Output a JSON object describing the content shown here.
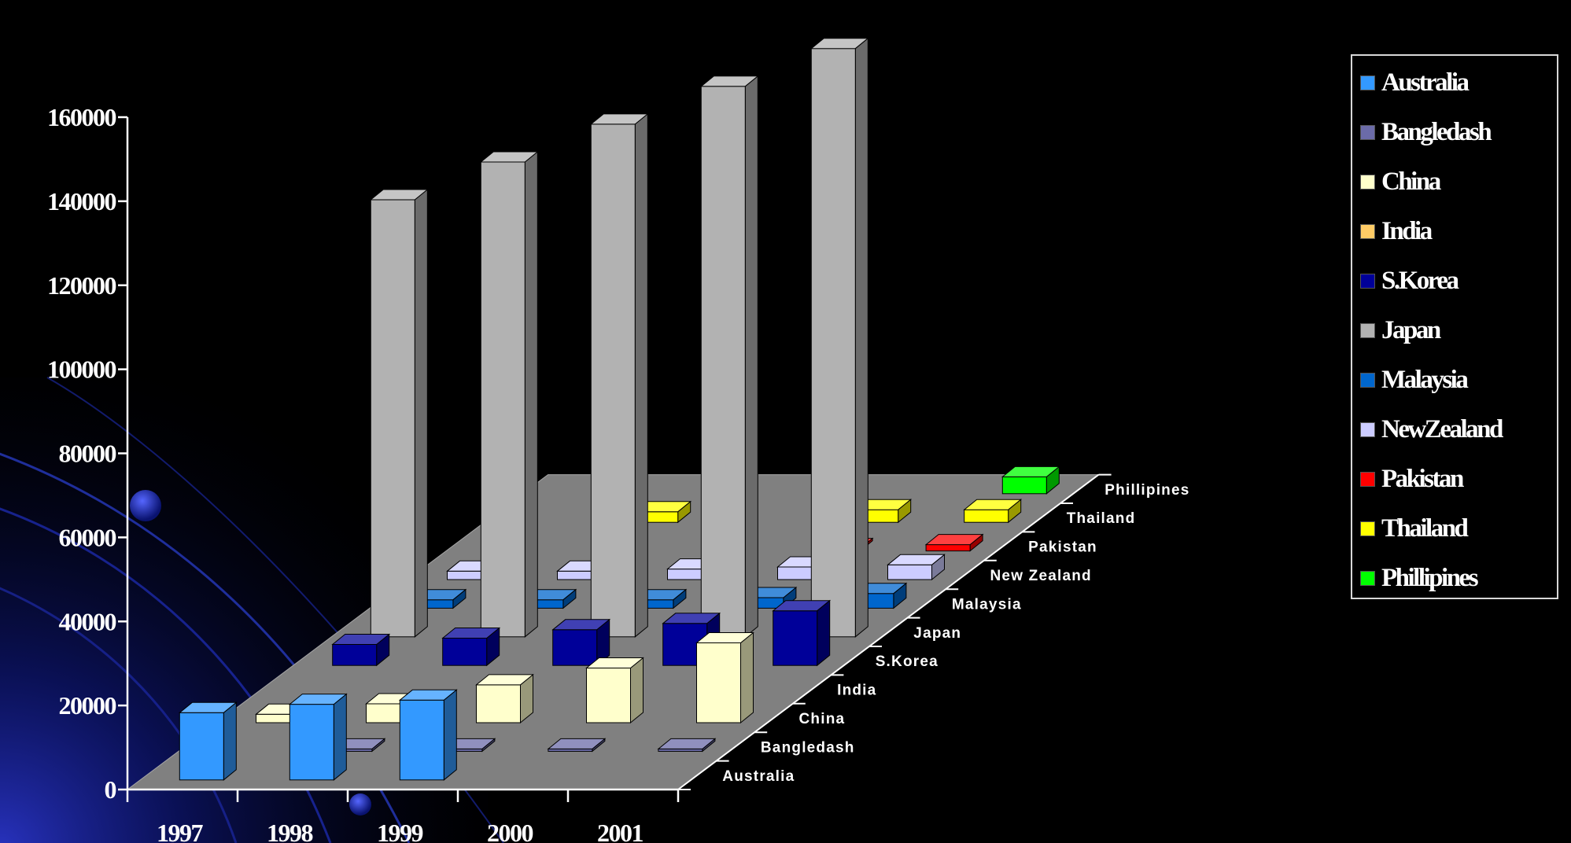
{
  "chart_data": {
    "type": "bar",
    "subtype": "3d-column",
    "categories": [
      "1997",
      "1998",
      "1999",
      "2000",
      "2001"
    ],
    "ylim": [
      0,
      160000
    ],
    "y_ticks": [
      "0",
      "20000",
      "40000",
      "60000",
      "80000",
      "100000",
      "120000",
      "140000",
      "160000"
    ],
    "depth_labels": [
      "Australia",
      "Bangledash",
      "China",
      "India",
      "S.Korea",
      "Japan",
      "Malaysia",
      "New Zealand",
      "Pakistan",
      "Thailand",
      "Phillipines"
    ],
    "legend_position": "right",
    "series": [
      {
        "name": "Australia",
        "color": "#3399ff",
        "values": [
          16000,
          18000,
          19000,
          null,
          null
        ]
      },
      {
        "name": "Bangledash",
        "color": "#6b6ba8",
        "values": [
          null,
          300,
          300,
          300,
          300
        ]
      },
      {
        "name": "China",
        "color": "#ffffcc",
        "values": [
          2000,
          4500,
          9000,
          13000,
          19000
        ]
      },
      {
        "name": "India",
        "color": "#ffcc66",
        "values": [
          null,
          null,
          null,
          null,
          null
        ]
      },
      {
        "name": "S.Korea",
        "color": "#000099",
        "values": [
          5000,
          6500,
          8500,
          10000,
          13000
        ]
      },
      {
        "name": "Japan",
        "color": "#b2b2b2",
        "values": [
          104000,
          113000,
          122000,
          131000,
          140000
        ]
      },
      {
        "name": "Malaysia",
        "color": "#0066cc",
        "values": [
          2000,
          2000,
          2000,
          2500,
          3500
        ]
      },
      {
        "name": "New Zealand",
        "color": "#ccccff",
        "values": [
          2000,
          2000,
          2500,
          3000,
          3500
        ]
      },
      {
        "name": "Pakistan",
        "color": "#ff0000",
        "values": [
          null,
          null,
          null,
          500,
          1500
        ]
      },
      {
        "name": "Thailand",
        "color": "#ffff00",
        "values": [
          null,
          2500,
          null,
          3000,
          3000
        ]
      },
      {
        "name": "Phillipines",
        "color": "#00ff00",
        "values": [
          null,
          null,
          null,
          null,
          4000
        ]
      }
    ]
  },
  "legend": {
    "items": [
      "Australia",
      "Bangledash",
      "China",
      "India",
      "S.Korea",
      "Japan",
      "Malaysia",
      "NewZealand",
      "Pakistan",
      "Thailand",
      "Phillipines"
    ]
  }
}
